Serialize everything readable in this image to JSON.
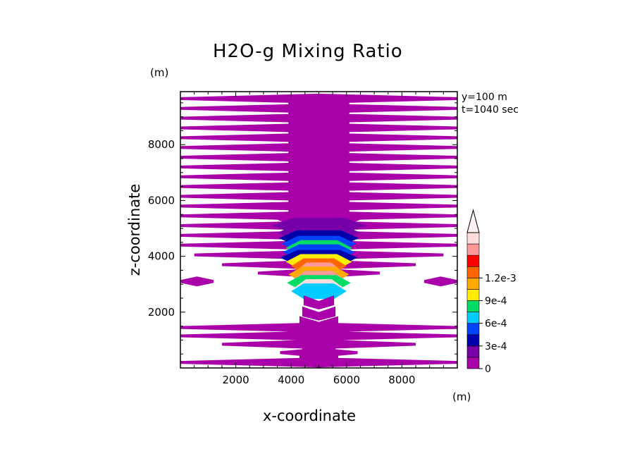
{
  "chart_data": {
    "type": "heatmap",
    "title": "H2O-g Mixing Ratio",
    "xlabel": "x-coordinate",
    "ylabel": "z-coordinate",
    "x_unit": "(m)",
    "y_unit": "(m)",
    "annotations": [
      "y=100 m",
      "t=1040 sec"
    ],
    "xlim": [
      0,
      10000
    ],
    "ylim": [
      0,
      9900
    ],
    "x_ticks": [
      2000,
      4000,
      6000,
      8000
    ],
    "y_ticks": [
      2000,
      4000,
      6000,
      8000
    ],
    "colorbar": {
      "tick_values": [
        0,
        0.0003,
        0.0006,
        0.0009,
        0.0012
      ],
      "tick_labels": [
        "0",
        "3e-4",
        "6e-4",
        "9e-4",
        "1.2e-3"
      ],
      "level_step": 0.00015,
      "colors": [
        "#aa00aa",
        "#7700aa",
        "#0000aa",
        "#0044ff",
        "#00ccff",
        "#00dd66",
        "#ffee00",
        "#ffaa00",
        "#ff6600",
        "#ff0000",
        "#ff9999",
        "#ffdddd"
      ],
      "extend_top_color": "#fff0f0"
    },
    "bands": [
      {
        "z": 9650,
        "x0": 0,
        "x1": 10000,
        "level": 0
      },
      {
        "z": 9300,
        "x0": 0,
        "x1": 10000,
        "level": 0
      },
      {
        "z": 8950,
        "x0": 0,
        "x1": 10000,
        "level": 0
      },
      {
        "z": 8600,
        "x0": 0,
        "x1": 10000,
        "level": 0
      },
      {
        "z": 8250,
        "x0": 0,
        "x1": 10000,
        "level": 0
      },
      {
        "z": 7900,
        "x0": 0,
        "x1": 10000,
        "level": 0
      },
      {
        "z": 7550,
        "x0": 0,
        "x1": 10000,
        "level": 0
      },
      {
        "z": 7200,
        "x0": 0,
        "x1": 10000,
        "level": 0
      },
      {
        "z": 6850,
        "x0": 0,
        "x1": 10000,
        "level": 0
      },
      {
        "z": 6500,
        "x0": 0,
        "x1": 10000,
        "level": 0
      },
      {
        "z": 6150,
        "x0": 0,
        "x1": 10000,
        "level": 0
      },
      {
        "z": 5800,
        "x0": 0,
        "x1": 10000,
        "level": 0
      },
      {
        "z": 5450,
        "x0": 0,
        "x1": 10000,
        "level": 0
      },
      {
        "z": 5100,
        "x0": 0,
        "x1": 10000,
        "level": 0
      },
      {
        "z": 4750,
        "x0": 0,
        "x1": 10000,
        "level": 0
      },
      {
        "z": 4400,
        "x0": 0,
        "x1": 10000,
        "level": 0
      },
      {
        "z": 4050,
        "x0": 500,
        "x1": 9500,
        "level": 0
      },
      {
        "z": 3700,
        "x0": 1500,
        "x1": 8500,
        "level": 0
      },
      {
        "z": 3400,
        "x0": 2800,
        "x1": 7200,
        "level": 0
      },
      {
        "z": 3100,
        "x0": 0,
        "x1": 1200,
        "level": 0
      },
      {
        "z": 3100,
        "x0": 8800,
        "x1": 10000,
        "level": 0
      },
      {
        "z": 1450,
        "x0": 0,
        "x1": 10000,
        "level": 0
      },
      {
        "z": 1150,
        "x0": 0,
        "x1": 10000,
        "level": 0
      },
      {
        "z": 850,
        "x0": 1500,
        "x1": 8500,
        "level": 0
      },
      {
        "z": 550,
        "x0": 3600,
        "x1": 6400,
        "level": 0
      },
      {
        "z": 200,
        "x0": 0,
        "x1": 10000,
        "level": 0
      }
    ],
    "core_column": {
      "x0": 3900,
      "x1": 6100,
      "z0": 5000,
      "z1": 9600,
      "level": 0
    },
    "plume": [
      {
        "z": 5350,
        "rx": 1600,
        "level": 0
      },
      {
        "z": 5100,
        "rx": 1700,
        "level": 1
      },
      {
        "z": 4850,
        "rx": 1500,
        "level": 1
      },
      {
        "z": 4650,
        "rx": 1450,
        "level": 2
      },
      {
        "z": 4450,
        "rx": 1350,
        "level": 3
      },
      {
        "z": 4300,
        "rx": 1200,
        "level": 5
      },
      {
        "z": 4150,
        "rx": 1300,
        "level": 3
      },
      {
        "z": 3950,
        "rx": 1400,
        "level": 2
      },
      {
        "z": 3800,
        "rx": 1200,
        "level": 6
      },
      {
        "z": 3650,
        "rx": 1000,
        "level": 8
      },
      {
        "z": 3500,
        "rx": 800,
        "level": 10
      },
      {
        "z": 3350,
        "rx": 1100,
        "level": 7
      },
      {
        "z": 3200,
        "rx": 900,
        "level": 10
      },
      {
        "z": 3050,
        "rx": 1150,
        "level": 5
      },
      {
        "z": 2900,
        "rx": 850,
        "level": 11
      },
      {
        "z": 2750,
        "rx": 1000,
        "level": 4
      }
    ],
    "lower_column": [
      {
        "z": 2350,
        "rx": 550,
        "level": 0
      },
      {
        "z": 1950,
        "rx": 600,
        "level": 0
      },
      {
        "z": 1600,
        "rx": 700,
        "level": 0
      },
      {
        "z": 1250,
        "rx": 650,
        "level": 0
      },
      {
        "z": 900,
        "rx": 800,
        "level": 0
      },
      {
        "z": 550,
        "rx": 600,
        "level": 0
      },
      {
        "z": 250,
        "rx": 700,
        "level": 0
      }
    ]
  }
}
